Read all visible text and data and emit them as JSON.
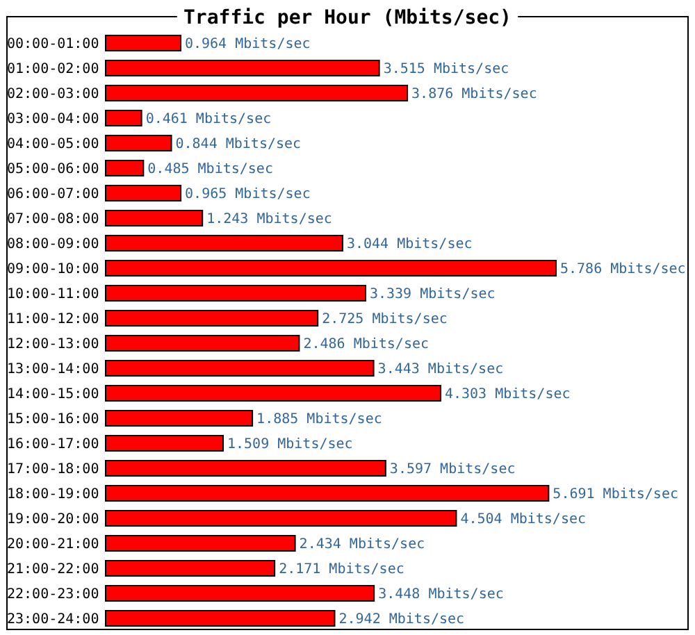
{
  "chart_data": {
    "type": "bar",
    "orientation": "horizontal",
    "title": "Traffic per Hour (Mbits/sec)",
    "categories": [
      "00:00-01:00",
      "01:00-02:00",
      "02:00-03:00",
      "03:00-04:00",
      "04:00-05:00",
      "05:00-06:00",
      "06:00-07:00",
      "07:00-08:00",
      "08:00-09:00",
      "09:00-10:00",
      "10:00-11:00",
      "11:00-12:00",
      "12:00-13:00",
      "13:00-14:00",
      "14:00-15:00",
      "15:00-16:00",
      "16:00-17:00",
      "17:00-18:00",
      "18:00-19:00",
      "19:00-20:00",
      "20:00-21:00",
      "21:00-22:00",
      "22:00-23:00",
      "23:00-24:00"
    ],
    "values": [
      0.964,
      3.515,
      3.876,
      0.461,
      0.844,
      0.485,
      0.965,
      1.243,
      3.044,
      5.786,
      3.339,
      2.725,
      2.486,
      3.443,
      4.303,
      1.885,
      1.509,
      3.597,
      5.691,
      4.504,
      2.434,
      2.171,
      3.448,
      2.942
    ],
    "value_labels": [
      "0.964 Mbits/sec",
      "3.515 Mbits/sec",
      "3.876 Mbits/sec",
      "0.461 Mbits/sec",
      "0.844 Mbits/sec",
      "0.485 Mbits/sec",
      "0.965 Mbits/sec",
      "1.243 Mbits/sec",
      "3.044 Mbits/sec",
      "5.786 Mbits/sec",
      "3.339 Mbits/sec",
      "2.725 Mbits/sec",
      "2.486 Mbits/sec",
      "3.443 Mbits/sec",
      "4.303 Mbits/sec",
      "1.885 Mbits/sec",
      "1.509 Mbits/sec",
      "3.597 Mbits/sec",
      "5.691 Mbits/sec",
      "4.504 Mbits/sec",
      "2.434 Mbits/sec",
      "2.171 Mbits/sec",
      "3.448 Mbits/sec",
      "2.942 Mbits/sec"
    ],
    "color": "#ff0000"
  }
}
